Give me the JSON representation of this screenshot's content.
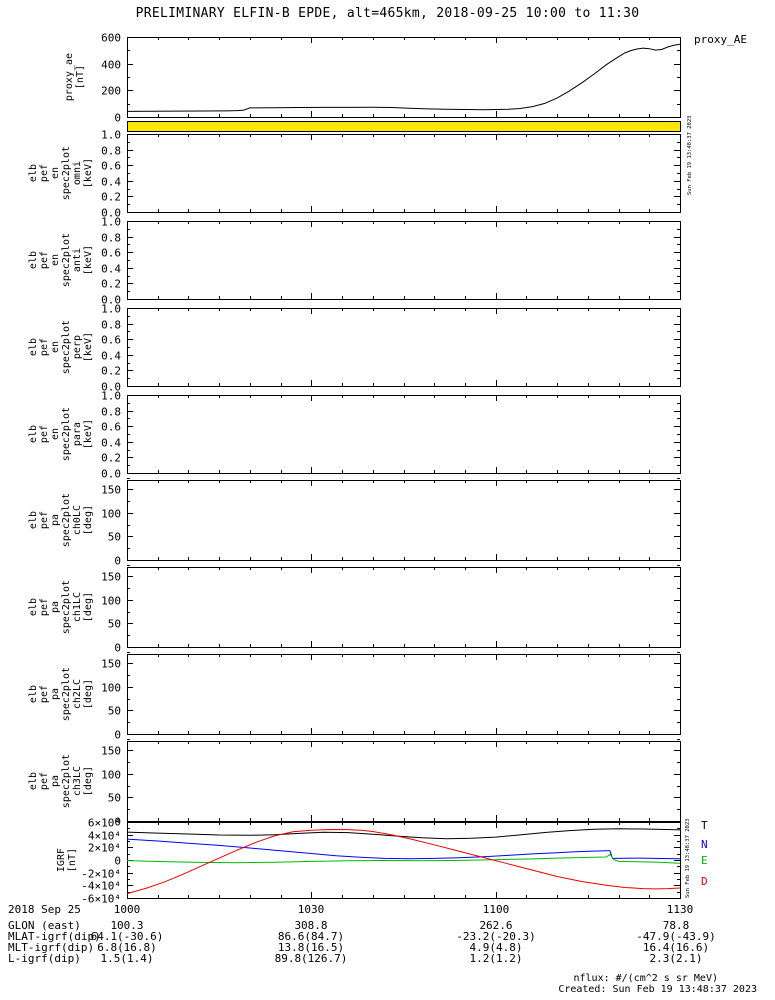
{
  "title": "PRELIMINARY ELFIN-B EPDE, alt=465km, 2018-09-25 10:00 to 11:30",
  "right_labels": {
    "proxy": "proxy_AE",
    "igrf": [
      "T",
      "N",
      "E",
      "D"
    ]
  },
  "vertical_timestamp": "Sun Feb 19 13:48:37 2023",
  "footer": {
    "nflux_note": "nflux: #/(cm^2 s sr MeV)",
    "created": "Created: Sun Feb 19 13:48:37 2023"
  },
  "bottom_table": {
    "date_label": "2018 Sep 25",
    "columns": [
      "1000",
      "1030",
      "1100",
      "1130"
    ],
    "rows": [
      {
        "label": "GLON (east)",
        "values": [
          "100.3",
          "308.8",
          "262.6",
          "78.8"
        ]
      },
      {
        "label": "MLAT-igrf(dip)",
        "values": [
          "64.1(-30.6)",
          "86.6(84.7)",
          "-23.2(-20.3)",
          "-47.9(-43.9)"
        ]
      },
      {
        "label": "MLT-igrf(dip)",
        "values": [
          "6.8(16.8)",
          "13.8(16.5)",
          "4.9(4.8)",
          "16.4(16.6)"
        ]
      },
      {
        "label": "L-igrf(dip)",
        "values": [
          "1.5(1.4)",
          "89.8(126.7)",
          "1.2(1.2)",
          "2.3(2.1)"
        ]
      }
    ]
  },
  "chart_data": {
    "type": "multi-panel time series (tplot stack)",
    "x_axis": {
      "labels": [
        "1000",
        "1030",
        "1100",
        "1130"
      ],
      "tick_minutes": [
        0,
        30,
        60,
        90
      ],
      "minor_tick_step_min": 5,
      "range_minutes": [
        0,
        90
      ],
      "date": "2018-09-25"
    },
    "panels": [
      {
        "id": "proxy_ae",
        "type": "line",
        "ylabel_words": [
          "proxy_ae",
          "[nT]"
        ],
        "ylim": [
          0,
          600
        ],
        "yticks": [
          0,
          200,
          400,
          600
        ],
        "ytick_labels": [
          "0",
          "200",
          "400",
          "600"
        ],
        "series": [
          {
            "name": "proxy_AE",
            "color": "#000000",
            "points": [
              [
                0,
                42
              ],
              [
                4,
                43
              ],
              [
                8,
                44
              ],
              [
                12,
                45
              ],
              [
                16,
                46
              ],
              [
                18,
                48
              ],
              [
                19,
                52
              ],
              [
                20,
                68
              ],
              [
                24,
                70
              ],
              [
                28,
                71
              ],
              [
                32,
                72
              ],
              [
                36,
                72
              ],
              [
                40,
                73
              ],
              [
                43,
                71
              ],
              [
                46,
                66
              ],
              [
                49,
                61
              ],
              [
                52,
                58
              ],
              [
                55,
                56
              ],
              [
                58,
                55
              ],
              [
                60,
                56
              ],
              [
                62,
                58
              ],
              [
                64,
                64
              ],
              [
                66,
                78
              ],
              [
                68,
                102
              ],
              [
                70,
                142
              ],
              [
                72,
                196
              ],
              [
                74,
                256
              ],
              [
                76,
                322
              ],
              [
                78,
                392
              ],
              [
                80,
                452
              ],
              [
                81,
                480
              ],
              [
                82,
                498
              ],
              [
                83,
                510
              ],
              [
                84,
                517
              ],
              [
                85,
                512
              ],
              [
                86,
                502
              ],
              [
                87,
                506
              ],
              [
                88,
                525
              ],
              [
                89,
                538
              ],
              [
                90,
                546
              ]
            ]
          }
        ]
      },
      {
        "id": "flag_bar",
        "type": "filled_bar",
        "fill": "#ffe600"
      },
      {
        "id": "omni",
        "type": "spectrogram_empty",
        "ylabel_words": [
          "elb",
          "pef",
          "en",
          "spec2plot",
          "omni",
          "[keV]"
        ],
        "ylim": [
          0,
          1
        ],
        "yticks": [
          0,
          0.2,
          0.4,
          0.6,
          0.8,
          1
        ],
        "ytick_labels": [
          "0.0",
          "0.2",
          "0.4",
          "0.6",
          "0.8",
          "1.0"
        ]
      },
      {
        "id": "anti",
        "type": "spectrogram_empty",
        "ylabel_words": [
          "elb",
          "pef",
          "en",
          "spec2plot",
          "anti",
          "[keV]"
        ],
        "ylim": [
          0,
          1
        ],
        "yticks": [
          0,
          0.2,
          0.4,
          0.6,
          0.8,
          1
        ],
        "ytick_labels": [
          "0.0",
          "0.2",
          "0.4",
          "0.6",
          "0.8",
          "1.0"
        ]
      },
      {
        "id": "perp",
        "type": "spectrogram_empty",
        "ylabel_words": [
          "elb",
          "pef",
          "en",
          "spec2plot",
          "perp",
          "[keV]"
        ],
        "ylim": [
          0,
          1
        ],
        "yticks": [
          0,
          0.2,
          0.4,
          0.6,
          0.8,
          1
        ],
        "ytick_labels": [
          "0.0",
          "0.2",
          "0.4",
          "0.6",
          "0.8",
          "1.0"
        ]
      },
      {
        "id": "para",
        "type": "spectrogram_empty",
        "ylabel_words": [
          "elb",
          "pef",
          "en",
          "spec2plot",
          "para",
          "[keV]"
        ],
        "ylim": [
          0,
          1
        ],
        "yticks": [
          0,
          0.2,
          0.4,
          0.6,
          0.8,
          1
        ],
        "ytick_labels": [
          "0.0",
          "0.2",
          "0.4",
          "0.6",
          "0.8",
          "1.0"
        ]
      },
      {
        "id": "ch0lc",
        "type": "spectrogram_empty",
        "ylabel_words": [
          "elb",
          "pef",
          "pa",
          "spec2plot",
          "ch0LC",
          "[deg]"
        ],
        "ylim": [
          0,
          170
        ],
        "yticks": [
          0,
          50,
          100,
          150
        ],
        "ytick_labels": [
          "0",
          "50",
          "100",
          "150"
        ]
      },
      {
        "id": "ch1lc",
        "type": "spectrogram_empty",
        "ylabel_words": [
          "elb",
          "pef",
          "pa",
          "spec2plot",
          "ch1LC",
          "[deg]"
        ],
        "ylim": [
          0,
          170
        ],
        "yticks": [
          0,
          50,
          100,
          150
        ],
        "ytick_labels": [
          "0",
          "50",
          "100",
          "150"
        ]
      },
      {
        "id": "ch2lc",
        "type": "spectrogram_empty",
        "ylabel_words": [
          "elb",
          "pef",
          "pa",
          "spec2plot",
          "ch2LC",
          "[deg]"
        ],
        "ylim": [
          0,
          170
        ],
        "yticks": [
          0,
          50,
          100,
          150
        ],
        "ytick_labels": [
          "0",
          "50",
          "100",
          "150"
        ]
      },
      {
        "id": "ch3lc",
        "type": "spectrogram_empty",
        "ylabel_words": [
          "elb",
          "pef",
          "pa",
          "spec2plot",
          "ch3LC",
          "[deg]"
        ],
        "ylim": [
          0,
          170
        ],
        "yticks": [
          0,
          50,
          100,
          150
        ],
        "ytick_labels": [
          "0",
          "50",
          "100",
          "150"
        ]
      },
      {
        "id": "igrf",
        "type": "line",
        "ylabel_words": [
          "IGRF",
          "[nT]"
        ],
        "ylim": [
          -60000,
          60000
        ],
        "yticks": [
          -60000,
          -40000,
          -20000,
          0,
          20000,
          40000,
          60000
        ],
        "ytick_labels": [
          "-6×10⁴",
          "-4×10⁴",
          "-2×10⁴",
          "0",
          "2×10⁴",
          "4×10⁴",
          "6×10⁴"
        ],
        "series": [
          {
            "name": "T",
            "color": "#000000",
            "points": [
              [
                0,
                44000
              ],
              [
                5,
                42500
              ],
              [
                10,
                41000
              ],
              [
                15,
                39500
              ],
              [
                20,
                39000
              ],
              [
                24,
                40000
              ],
              [
                28,
                42000
              ],
              [
                32,
                43800
              ],
              [
                36,
                43200
              ],
              [
                40,
                40800
              ],
              [
                44,
                37800
              ],
              [
                48,
                35200
              ],
              [
                52,
                33600
              ],
              [
                56,
                34200
              ],
              [
                60,
                36200
              ],
              [
                64,
                39600
              ],
              [
                68,
                43400
              ],
              [
                72,
                46400
              ],
              [
                76,
                48400
              ],
              [
                80,
                49200
              ],
              [
                84,
                49000
              ],
              [
                87,
                48300
              ],
              [
                90,
                47600
              ]
            ]
          },
          {
            "name": "N",
            "color": "#0000ff",
            "points": [
              [
                0,
                33000
              ],
              [
                5,
                30000
              ],
              [
                10,
                26500
              ],
              [
                15,
                23000
              ],
              [
                20,
                19000
              ],
              [
                25,
                14500
              ],
              [
                30,
                10200
              ],
              [
                34,
                6800
              ],
              [
                38,
                4200
              ],
              [
                42,
                2600
              ],
              [
                46,
                2100
              ],
              [
                50,
                2600
              ],
              [
                54,
                3600
              ],
              [
                58,
                5200
              ],
              [
                62,
                7200
              ],
              [
                66,
                9600
              ],
              [
                70,
                11600
              ],
              [
                73,
                13000
              ],
              [
                76,
                14000
              ],
              [
                78,
                14500
              ],
              [
                78.6,
                14500
              ],
              [
                79,
                2600
              ],
              [
                81,
                2800
              ],
              [
                83,
                3000
              ],
              [
                85,
                2800
              ],
              [
                87,
                2400
              ],
              [
                90,
                2000
              ]
            ]
          },
          {
            "name": "E",
            "color": "#00bb00",
            "points": [
              [
                0,
                -1000
              ],
              [
                6,
                -2600
              ],
              [
                12,
                -3800
              ],
              [
                18,
                -4200
              ],
              [
                24,
                -3400
              ],
              [
                30,
                -2200
              ],
              [
                36,
                -1200
              ],
              [
                42,
                -800
              ],
              [
                48,
                -1100
              ],
              [
                54,
                -600
              ],
              [
                60,
                400
              ],
              [
                66,
                1800
              ],
              [
                70,
                3000
              ],
              [
                74,
                4000
              ],
              [
                78,
                4800
              ],
              [
                78.6,
                9000
              ],
              [
                79.2,
                800
              ],
              [
                80,
                -2200
              ],
              [
                83,
                -2900
              ],
              [
                86,
                -3300
              ],
              [
                90,
                -5000
              ]
            ]
          },
          {
            "name": "D",
            "color": "#ee0000",
            "points": [
              [
                0,
                -53000
              ],
              [
                3,
                -45000
              ],
              [
                6,
                -35000
              ],
              [
                9,
                -23000
              ],
              [
                12,
                -10000
              ],
              [
                15,
                3000
              ],
              [
                18,
                16000
              ],
              [
                21,
                28000
              ],
              [
                24,
                38000
              ],
              [
                27,
                44500
              ],
              [
                30,
                47000
              ],
              [
                33,
                48200
              ],
              [
                36,
                48000
              ],
              [
                38,
                47000
              ],
              [
                40,
                45000
              ],
              [
                43,
                40000
              ],
              [
                46,
                33500
              ],
              [
                50,
                24000
              ],
              [
                54,
                14000
              ],
              [
                58,
                4000
              ],
              [
                62,
                -6000
              ],
              [
                66,
                -16000
              ],
              [
                70,
                -26000
              ],
              [
                74,
                -34000
              ],
              [
                78,
                -40000
              ],
              [
                81,
                -43500
              ],
              [
                84,
                -45200
              ],
              [
                86,
                -45600
              ],
              [
                88,
                -45200
              ],
              [
                90,
                -44200
              ]
            ]
          }
        ]
      }
    ]
  }
}
